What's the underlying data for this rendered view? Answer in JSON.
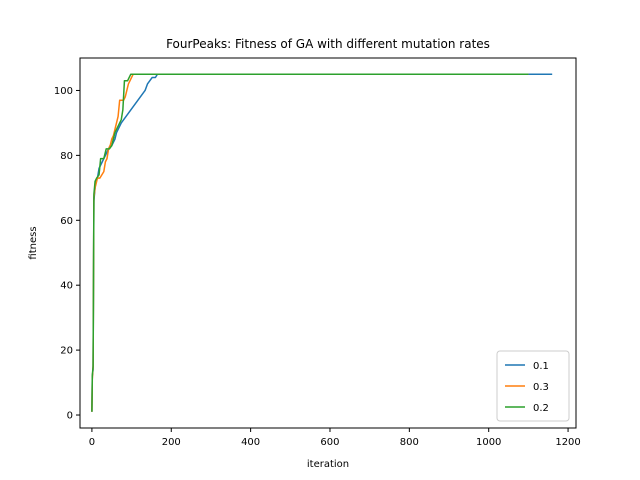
{
  "chart_data": {
    "type": "line",
    "title": "FourPeaks: Fitness of GA with different mutation rates",
    "xlabel": "iteration",
    "ylabel": "fitness",
    "xlim": [
      -30,
      1220
    ],
    "ylim": [
      -4,
      110
    ],
    "xticks": [
      0,
      200,
      400,
      600,
      800,
      1000,
      1200
    ],
    "yticks": [
      0,
      20,
      40,
      60,
      80,
      100
    ],
    "grid": false,
    "legend_position": "lower-right",
    "series": [
      {
        "name": "0.1",
        "color": "#1f77b4",
        "points": [
          [
            0,
            1
          ],
          [
            1,
            12
          ],
          [
            3,
            14
          ],
          [
            5,
            66
          ],
          [
            8,
            70
          ],
          [
            10,
            72
          ],
          [
            14,
            73
          ],
          [
            18,
            76
          ],
          [
            22,
            77
          ],
          [
            26,
            78
          ],
          [
            30,
            79
          ],
          [
            34,
            80
          ],
          [
            38,
            81
          ],
          [
            42,
            82
          ],
          [
            46,
            83
          ],
          [
            50,
            83
          ],
          [
            54,
            84
          ],
          [
            58,
            85
          ],
          [
            62,
            87
          ],
          [
            66,
            88
          ],
          [
            70,
            89
          ],
          [
            74,
            90
          ],
          [
            80,
            91
          ],
          [
            86,
            92
          ],
          [
            92,
            93
          ],
          [
            98,
            94
          ],
          [
            104,
            95
          ],
          [
            110,
            96
          ],
          [
            116,
            97
          ],
          [
            122,
            98
          ],
          [
            128,
            99
          ],
          [
            134,
            100
          ],
          [
            140,
            102
          ],
          [
            146,
            103
          ],
          [
            152,
            104
          ],
          [
            160,
            104
          ],
          [
            165,
            105
          ],
          [
            500,
            105
          ],
          [
            1000,
            105
          ],
          [
            1160,
            105
          ]
        ]
      },
      {
        "name": "0.3",
        "color": "#ff7f0e",
        "points": [
          [
            0,
            1
          ],
          [
            1,
            11
          ],
          [
            3,
            15
          ],
          [
            5,
            67
          ],
          [
            8,
            70
          ],
          [
            10,
            71
          ],
          [
            14,
            73
          ],
          [
            20,
            73
          ],
          [
            30,
            75
          ],
          [
            34,
            78
          ],
          [
            38,
            79
          ],
          [
            42,
            82
          ],
          [
            46,
            83
          ],
          [
            50,
            85
          ],
          [
            54,
            86
          ],
          [
            58,
            88
          ],
          [
            62,
            90
          ],
          [
            66,
            92
          ],
          [
            70,
            97
          ],
          [
            80,
            97
          ],
          [
            84,
            98
          ],
          [
            88,
            100
          ],
          [
            92,
            102
          ],
          [
            96,
            103
          ],
          [
            100,
            104
          ],
          [
            104,
            105
          ],
          [
            300,
            105
          ],
          [
            600,
            105
          ],
          [
            1100,
            105
          ]
        ]
      },
      {
        "name": "0.2",
        "color": "#2ca02c",
        "points": [
          [
            0,
            1
          ],
          [
            1,
            12
          ],
          [
            3,
            15
          ],
          [
            5,
            68
          ],
          [
            8,
            72
          ],
          [
            12,
            73
          ],
          [
            18,
            74
          ],
          [
            22,
            79
          ],
          [
            30,
            79
          ],
          [
            36,
            82
          ],
          [
            44,
            82
          ],
          [
            50,
            83
          ],
          [
            54,
            85
          ],
          [
            58,
            87
          ],
          [
            62,
            88
          ],
          [
            66,
            89
          ],
          [
            70,
            90
          ],
          [
            74,
            91
          ],
          [
            78,
            94
          ],
          [
            82,
            103
          ],
          [
            86,
            103
          ],
          [
            90,
            103
          ],
          [
            94,
            104
          ],
          [
            98,
            105
          ],
          [
            300,
            105
          ],
          [
            700,
            105
          ],
          [
            1100,
            105
          ]
        ]
      }
    ]
  }
}
